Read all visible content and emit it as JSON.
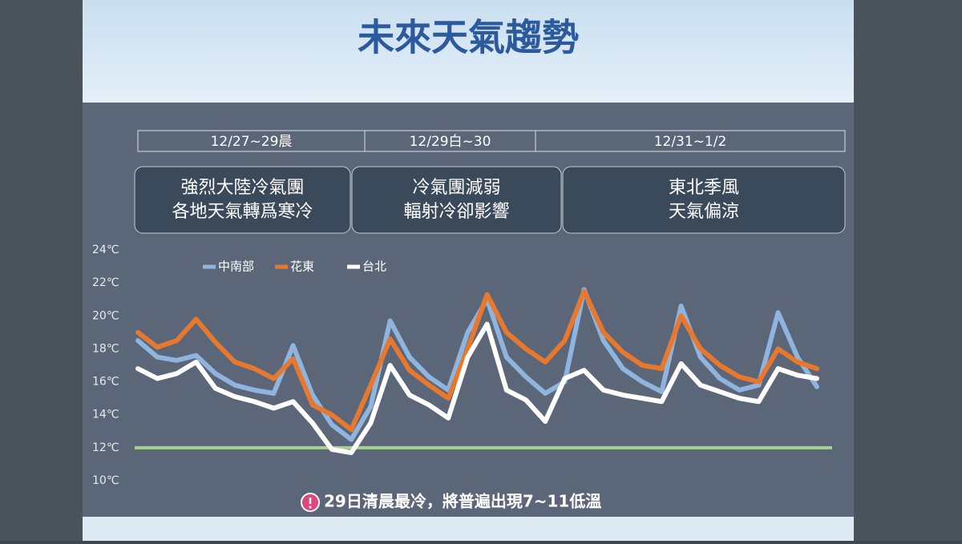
{
  "chart_data": {
    "type": "line",
    "title": "未來天氣趨勢",
    "periods": [
      "12/27~29晨",
      "12/29白~30",
      "12/31~1/2"
    ],
    "descriptions": [
      [
        "強烈大陸冷氣團",
        "各地天氣轉爲寒冷"
      ],
      [
        "冷氣團減弱",
        "輻射冷卻影響"
      ],
      [
        "東北季風",
        "天氣偏涼"
      ]
    ],
    "ylim": [
      10,
      24
    ],
    "yticks": [
      {
        "value": 10,
        "label": "10℃"
      },
      {
        "value": 12,
        "label": "12℃"
      },
      {
        "value": 14,
        "label": "14℃"
      },
      {
        "value": 16,
        "label": "16℃"
      },
      {
        "value": 18,
        "label": "18℃"
      },
      {
        "value": 20,
        "label": "20℃"
      },
      {
        "value": 22,
        "label": "22℃"
      },
      {
        "value": 24,
        "label": "24℃"
      }
    ],
    "reference_line": {
      "value": 12,
      "color": "#a6d28c"
    },
    "legend": "top-left",
    "series": [
      {
        "name": "中南部",
        "color": "#8fb4de",
        "values": [
          18.5,
          17.5,
          17.3,
          17.6,
          16.5,
          15.8,
          15.5,
          15.3,
          18.2,
          15.2,
          13.4,
          12.5,
          14.5,
          19.7,
          17.5,
          16.3,
          15.5,
          19,
          21,
          17.5,
          16.3,
          15.3,
          16,
          21.6,
          18.5,
          16.8,
          16,
          15.4,
          20.6,
          17.5,
          16.2,
          15.5,
          15.8,
          20.2,
          17.5,
          15.7
        ]
      },
      {
        "name": "花東",
        "color": "#e8782d",
        "values": [
          19,
          18.1,
          18.5,
          19.8,
          18.4,
          17.2,
          16.8,
          16.2,
          17.4,
          14.6,
          14,
          13.1,
          15.8,
          18.6,
          16.7,
          15.8,
          15,
          18,
          21.3,
          19,
          18,
          17.2,
          18.5,
          21.5,
          19,
          17.8,
          17,
          16.8,
          20,
          18,
          17,
          16.3,
          16,
          18,
          17.2,
          16.8
        ]
      },
      {
        "name": "台北",
        "color": "#ffffff",
        "values": [
          16.8,
          16.2,
          16.5,
          17.2,
          15.6,
          15.1,
          14.8,
          14.4,
          14.8,
          13.5,
          11.9,
          11.7,
          13.5,
          17,
          15.2,
          14.6,
          13.8,
          17.5,
          19.5,
          15.5,
          14.9,
          13.6,
          16.2,
          16.7,
          15.5,
          15.2,
          15,
          14.8,
          17.1,
          15.8,
          15.4,
          15,
          14.8,
          16.8,
          16.4,
          16.2
        ]
      }
    ],
    "note": "29日清晨最冷，將普遍出現7~11低溫"
  }
}
